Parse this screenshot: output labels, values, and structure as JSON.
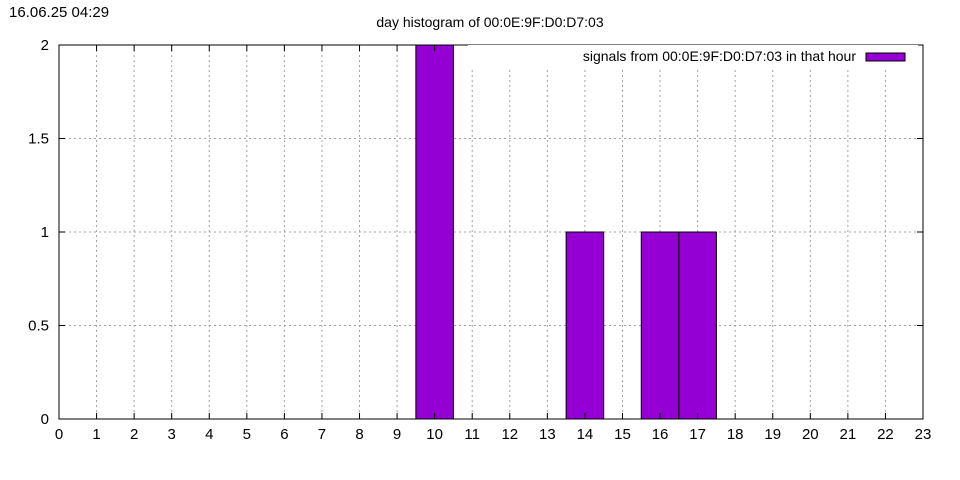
{
  "timestamp": "16.06.25 04:29",
  "chart_data": {
    "type": "bar",
    "title": "day histogram of 00:0E:9F:D0:D7:03",
    "xlabel": "",
    "ylabel": "",
    "xlim": [
      0,
      23
    ],
    "ylim": [
      0,
      2
    ],
    "xticks": [
      0,
      1,
      2,
      3,
      4,
      5,
      6,
      7,
      8,
      9,
      10,
      11,
      12,
      13,
      14,
      15,
      16,
      17,
      18,
      19,
      20,
      21,
      22,
      23
    ],
    "yticks": [
      0,
      0.5,
      1,
      1.5,
      2
    ],
    "ytick_labels": [
      "0",
      "0.5",
      "1",
      "1.5",
      "2"
    ],
    "grid": true,
    "legend_position": "top-right",
    "series": [
      {
        "name": "signals from 00:0E:9F:D0:D7:03 in that hour",
        "color": "#9400d3",
        "x": [
          10,
          14,
          16,
          17
        ],
        "values": [
          2,
          1,
          1,
          1
        ]
      }
    ]
  }
}
